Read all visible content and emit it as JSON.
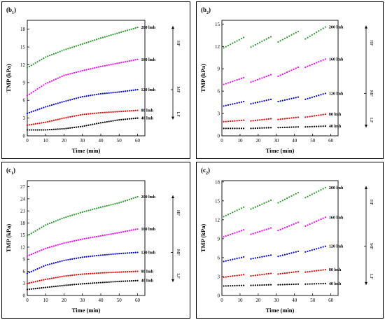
{
  "chart_data": [
    {
      "panel_label_main": "b",
      "panel_label_sub": "1",
      "type": "scatter",
      "xlabel": "Time (min)",
      "ylabel": "TMP (kPa)",
      "xlim": [
        0,
        64
      ],
      "ylim": [
        0,
        19.5
      ],
      "xticks": [
        0,
        10,
        20,
        30,
        40,
        50,
        60
      ],
      "yticks": [
        0,
        3,
        6,
        9,
        12,
        15,
        18
      ],
      "series": [
        {
          "name": "200 lmh",
          "color": "#2a9a2a",
          "points": [
            [
              0,
              11.5
            ],
            [
              10,
              13.3
            ],
            [
              20,
              14.5
            ],
            [
              30,
              15.5
            ],
            [
              40,
              16.5
            ],
            [
              50,
              17.4
            ],
            [
              60,
              18.3
            ]
          ]
        },
        {
          "name": "160 lmh",
          "color": "#ff00ff",
          "points": [
            [
              0,
              6.8
            ],
            [
              10,
              8.8
            ],
            [
              20,
              10.2
            ],
            [
              30,
              11.0
            ],
            [
              40,
              11.7
            ],
            [
              50,
              12.3
            ],
            [
              60,
              12.9
            ]
          ]
        },
        {
          "name": "120 lmh",
          "color": "#0000ee",
          "points": [
            [
              0,
              3.8
            ],
            [
              10,
              4.9
            ],
            [
              20,
              5.8
            ],
            [
              30,
              6.6
            ],
            [
              40,
              7.1
            ],
            [
              50,
              7.4
            ],
            [
              60,
              7.8
            ]
          ]
        },
        {
          "name": "80 lmh",
          "color": "#ee0000",
          "points": [
            [
              0,
              1.8
            ],
            [
              10,
              2.3
            ],
            [
              20,
              3.0
            ],
            [
              30,
              3.6
            ],
            [
              40,
              3.9
            ],
            [
              50,
              4.1
            ],
            [
              60,
              4.3
            ]
          ]
        },
        {
          "name": "40 lmh",
          "color": "#000000",
          "points": [
            [
              0,
              1.0
            ],
            [
              10,
              1.0
            ],
            [
              20,
              1.2
            ],
            [
              30,
              1.6
            ],
            [
              40,
              2.2
            ],
            [
              50,
              2.7
            ],
            [
              60,
              3.0
            ]
          ]
        }
      ],
      "regions": [
        "HF",
        "MF",
        "LF"
      ]
    },
    {
      "panel_label_main": "b",
      "panel_label_sub": "2",
      "type": "scatter",
      "xlabel": "Time (min)",
      "ylabel": "TMP (kPa)",
      "xlim": [
        0,
        64
      ],
      "ylim": [
        0,
        15.5
      ],
      "xticks": [
        0,
        10,
        20,
        30,
        40,
        50,
        60
      ],
      "yticks": [
        0,
        3,
        6,
        9,
        12,
        15
      ],
      "segments": [
        [
          1,
          12
        ],
        [
          16,
          27
        ],
        [
          31,
          42
        ],
        [
          46,
          57
        ]
      ],
      "series": [
        {
          "name": "200 lmh",
          "color": "#2a9a2a",
          "segment_values": [
            [
              11.8,
              13.2
            ],
            [
              11.9,
              13.3
            ],
            [
              12.6,
              14.0
            ],
            [
              13.0,
              14.6
            ]
          ]
        },
        {
          "name": "160 lmh",
          "color": "#ff00ff",
          "segment_values": [
            [
              6.9,
              7.8
            ],
            [
              7.2,
              8.2
            ],
            [
              8.0,
              9.2
            ],
            [
              9.2,
              10.3
            ]
          ]
        },
        {
          "name": "120 lmh",
          "color": "#0000ee",
          "segment_values": [
            [
              4.0,
              4.6
            ],
            [
              4.3,
              4.9
            ],
            [
              4.6,
              5.2
            ],
            [
              4.9,
              5.7
            ]
          ]
        },
        {
          "name": "80 lmh",
          "color": "#ee0000",
          "segment_values": [
            [
              1.9,
              2.1
            ],
            [
              2.0,
              2.3
            ],
            [
              2.2,
              2.5
            ],
            [
              2.5,
              2.9
            ]
          ]
        },
        {
          "name": "40 lmh",
          "color": "#000000",
          "segment_values": [
            [
              1.0,
              1.0
            ],
            [
              1.0,
              1.1
            ],
            [
              1.1,
              1.2
            ],
            [
              1.2,
              1.3
            ]
          ]
        }
      ],
      "regions": [
        "HF",
        "MF",
        "LF"
      ]
    },
    {
      "panel_label_main": "c",
      "panel_label_sub": "1",
      "type": "scatter",
      "xlabel": "Time (min)",
      "ylabel": "TMP (kPa)",
      "xlim": [
        0,
        64
      ],
      "ylim": [
        0,
        28.5
      ],
      "xticks": [
        0,
        10,
        20,
        30,
        40,
        50,
        60
      ],
      "yticks": [
        0,
        3,
        6,
        9,
        12,
        15,
        18,
        21,
        24,
        27
      ],
      "series": [
        {
          "name": "200 lmh",
          "color": "#2a9a2a",
          "points": [
            [
              0,
              14.8
            ],
            [
              10,
              17.5
            ],
            [
              20,
              19.3
            ],
            [
              30,
              20.7
            ],
            [
              40,
              21.9
            ],
            [
              50,
              23.0
            ],
            [
              60,
              24.5
            ]
          ]
        },
        {
          "name": "160 lmh",
          "color": "#ff00ff",
          "points": [
            [
              0,
              9.8
            ],
            [
              10,
              11.7
            ],
            [
              20,
              13.0
            ],
            [
              30,
              14.0
            ],
            [
              40,
              14.8
            ],
            [
              50,
              15.6
            ],
            [
              60,
              16.5
            ]
          ]
        },
        {
          "name": "120 lmh",
          "color": "#0000ee",
          "points": [
            [
              0,
              5.5
            ],
            [
              10,
              7.5
            ],
            [
              20,
              8.7
            ],
            [
              30,
              9.5
            ],
            [
              40,
              10.0
            ],
            [
              50,
              10.4
            ],
            [
              60,
              10.7
            ]
          ]
        },
        {
          "name": "80 lmh",
          "color": "#ee0000",
          "points": [
            [
              0,
              3.0
            ],
            [
              10,
              4.0
            ],
            [
              20,
              4.8
            ],
            [
              30,
              5.3
            ],
            [
              40,
              5.6
            ],
            [
              50,
              5.8
            ],
            [
              60,
              6.0
            ]
          ]
        },
        {
          "name": "40 lmh",
          "color": "#000000",
          "points": [
            [
              0,
              1.5
            ],
            [
              10,
              2.0
            ],
            [
              20,
              2.5
            ],
            [
              30,
              2.9
            ],
            [
              40,
              3.2
            ],
            [
              50,
              3.5
            ],
            [
              60,
              3.7
            ]
          ]
        }
      ],
      "regions": [
        "HF",
        "MF",
        "LF"
      ]
    },
    {
      "panel_label_main": "c",
      "panel_label_sub": "2",
      "type": "scatter",
      "xlabel": "Time (min)",
      "ylabel": "TMP (kPa)",
      "xlim": [
        0,
        64
      ],
      "ylim": [
        0,
        18.2
      ],
      "xticks": [
        0,
        10,
        20,
        30,
        40,
        50,
        60
      ],
      "yticks": [
        0,
        3,
        6,
        9,
        12,
        15,
        18
      ],
      "segments": [
        [
          1,
          12
        ],
        [
          16,
          27
        ],
        [
          31,
          42
        ],
        [
          46,
          57
        ]
      ],
      "series": [
        {
          "name": "200 lmh",
          "color": "#2a9a2a",
          "segment_values": [
            [
              12.5,
              14.0
            ],
            [
              13.7,
              15.1
            ],
            [
              14.7,
              16.3
            ],
            [
              15.5,
              17.1
            ]
          ]
        },
        {
          "name": "160 lmh",
          "color": "#ff00ff",
          "segment_values": [
            [
              9.3,
              10.4
            ],
            [
              9.7,
              10.7
            ],
            [
              10.3,
              11.6
            ],
            [
              11.0,
              12.4
            ]
          ]
        },
        {
          "name": "120 lmh",
          "color": "#0000ee",
          "segment_values": [
            [
              5.4,
              6.1
            ],
            [
              5.8,
              6.4
            ],
            [
              6.2,
              7.0
            ],
            [
              6.9,
              7.8
            ]
          ]
        },
        {
          "name": "80 lmh",
          "color": "#ee0000",
          "segment_values": [
            [
              2.9,
              3.3
            ],
            [
              3.1,
              3.5
            ],
            [
              3.4,
              3.8
            ],
            [
              3.7,
              4.1
            ]
          ]
        },
        {
          "name": "40 lmh",
          "color": "#000000",
          "segment_values": [
            [
              1.5,
              1.6
            ],
            [
              1.6,
              1.7
            ],
            [
              1.7,
              1.8
            ],
            [
              1.8,
              1.9
            ]
          ]
        }
      ],
      "regions": [
        "HF",
        "MF",
        "LF"
      ]
    }
  ]
}
